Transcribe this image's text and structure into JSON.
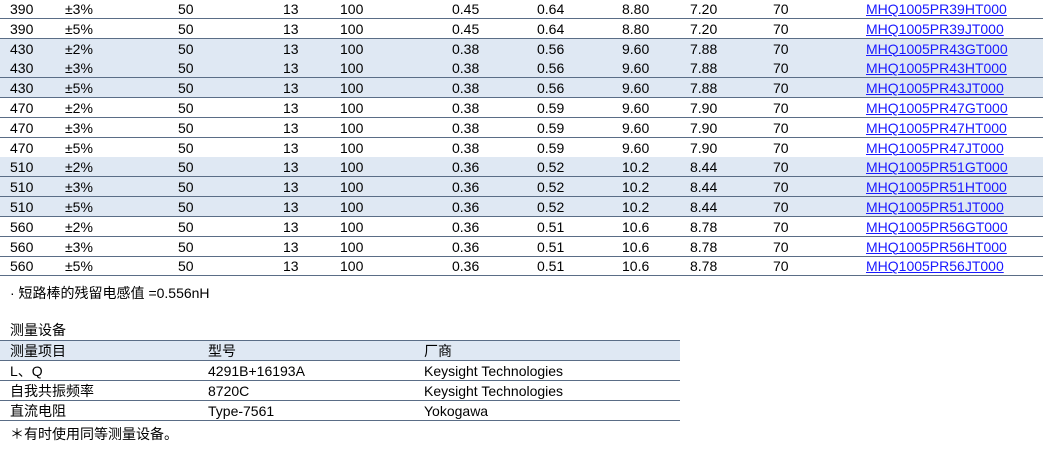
{
  "table": {
    "rows": [
      [
        "390",
        "±3%",
        "50",
        "13",
        "100",
        "0.45",
        "0.64",
        "8.80",
        "7.20",
        "70",
        "MHQ1005PR39HT000"
      ],
      [
        "390",
        "±5%",
        "50",
        "13",
        "100",
        "0.45",
        "0.64",
        "8.80",
        "7.20",
        "70",
        "MHQ1005PR39JT000"
      ],
      [
        "430",
        "±2%",
        "50",
        "13",
        "100",
        "0.38",
        "0.56",
        "9.60",
        "7.88",
        "70",
        "MHQ1005PR43GT000"
      ],
      [
        "430",
        "±3%",
        "50",
        "13",
        "100",
        "0.38",
        "0.56",
        "9.60",
        "7.88",
        "70",
        "MHQ1005PR43HT000"
      ],
      [
        "430",
        "±5%",
        "50",
        "13",
        "100",
        "0.38",
        "0.56",
        "9.60",
        "7.88",
        "70",
        "MHQ1005PR43JT000"
      ],
      [
        "470",
        "±2%",
        "50",
        "13",
        "100",
        "0.38",
        "0.59",
        "9.60",
        "7.90",
        "70",
        "MHQ1005PR47GT000"
      ],
      [
        "470",
        "±3%",
        "50",
        "13",
        "100",
        "0.38",
        "0.59",
        "9.60",
        "7.90",
        "70",
        "MHQ1005PR47HT000"
      ],
      [
        "470",
        "±5%",
        "50",
        "13",
        "100",
        "0.38",
        "0.59",
        "9.60",
        "7.90",
        "70",
        "MHQ1005PR47JT000"
      ],
      [
        "510",
        "±2%",
        "50",
        "13",
        "100",
        "0.36",
        "0.52",
        "10.2",
        "8.44",
        "70",
        "MHQ1005PR51GT000"
      ],
      [
        "510",
        "±3%",
        "50",
        "13",
        "100",
        "0.36",
        "0.52",
        "10.2",
        "8.44",
        "70",
        "MHQ1005PR51HT000"
      ],
      [
        "510",
        "±5%",
        "50",
        "13",
        "100",
        "0.36",
        "0.52",
        "10.2",
        "8.44",
        "70",
        "MHQ1005PR51JT000"
      ],
      [
        "560",
        "±2%",
        "50",
        "13",
        "100",
        "0.36",
        "0.51",
        "10.6",
        "8.78",
        "70",
        "MHQ1005PR56GT000"
      ],
      [
        "560",
        "±3%",
        "50",
        "13",
        "100",
        "0.36",
        "0.51",
        "10.6",
        "8.78",
        "70",
        "MHQ1005PR56HT000"
      ],
      [
        "560",
        "±5%",
        "50",
        "13",
        "100",
        "0.36",
        "0.51",
        "10.6",
        "8.78",
        "70",
        "MHQ1005PR56JT000"
      ]
    ],
    "note": "· 短路棒的残留电感值 =0.556nH"
  },
  "equipment": {
    "title": "测量设备",
    "header": [
      "测量项目",
      "型号",
      "厂商"
    ],
    "rows": [
      [
        "L、Q",
        "4291B+16193A",
        "Keysight Technologies"
      ],
      [
        "自我共振频率",
        "8720C",
        "Keysight Technologies"
      ],
      [
        "直流电阻",
        "Type-7561",
        "Yokogawa"
      ]
    ],
    "footnote": "＊有时使用同等测量设备。"
  }
}
